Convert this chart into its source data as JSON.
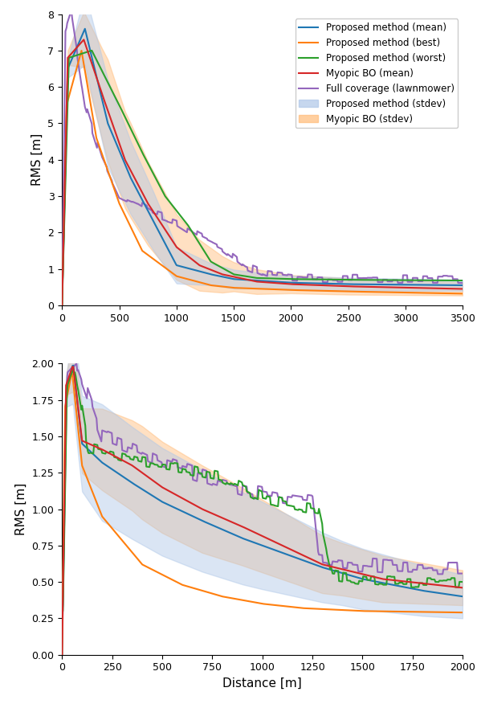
{
  "top": {
    "xlim": [
      0,
      3500
    ],
    "ylim": [
      0,
      8
    ],
    "yticks": [
      0,
      1,
      2,
      3,
      4,
      5,
      6,
      7,
      8
    ],
    "xticks": [
      0,
      500,
      1000,
      1500,
      2000,
      2500,
      3000,
      3500
    ],
    "ylabel": "RMS [m]"
  },
  "bottom": {
    "xlim": [
      0,
      2000
    ],
    "ylim": [
      0.0,
      2.0
    ],
    "yticks": [
      0.0,
      0.25,
      0.5,
      0.75,
      1.0,
      1.25,
      1.5,
      1.75,
      2.0
    ],
    "xticks": [
      0,
      250,
      500,
      750,
      1000,
      1250,
      1500,
      1750,
      2000
    ],
    "xlabel": "Distance [m]",
    "ylabel": "RMS [m]"
  },
  "colors": {
    "proposed_mean": "#1f77b4",
    "proposed_best": "#ff7f0e",
    "proposed_worst": "#2ca02c",
    "myopic_mean": "#d62728",
    "lawnmower": "#9467bd",
    "proposed_stdev_fill": "#aec7e8",
    "myopic_stdev_fill": "#ffbb78"
  },
  "legend_labels": [
    "Proposed method (mean)",
    "Proposed method (best)",
    "Proposed method (worst)",
    "Myopic BO (mean)",
    "Full coverage (lawnmower)",
    "Proposed method (stdev)",
    "Myopic BO (stdev)"
  ]
}
